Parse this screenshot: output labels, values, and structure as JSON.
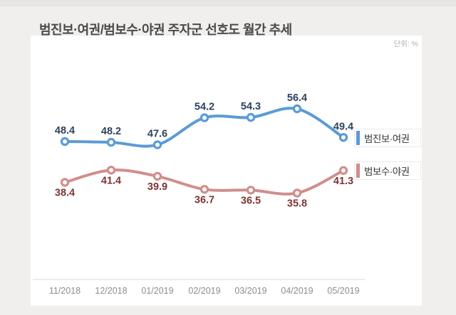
{
  "page": {
    "title": "범진보·여권/범보수·야권 주자군 선호도 월간 추세",
    "unit_label": "단위: %"
  },
  "chart_data": {
    "type": "line",
    "title": "범진보·여권/범보수·야권 주자군 선호도 월간 추세",
    "unit": "%",
    "categories": [
      "11/2018",
      "12/2018",
      "01/2019",
      "02/2019",
      "03/2019",
      "04/2019",
      "05/2019"
    ],
    "series": [
      {
        "name": "범진보·여권",
        "values": [
          48.4,
          48.2,
          47.6,
          54.2,
          54.3,
          56.4,
          49.4
        ],
        "color": "#5b9bd5",
        "label_color": "#2e4160",
        "value_label_position": "above"
      },
      {
        "name": "범보수·야권",
        "values": [
          38.4,
          41.4,
          39.9,
          36.7,
          36.5,
          35.8,
          41.3
        ],
        "color": "#d18e8c",
        "label_color": "#7d3535",
        "value_label_position": "below"
      }
    ],
    "legend_position": "right",
    "grid": false,
    "smooth": true,
    "ylim": [
      30,
      62
    ],
    "colors": {
      "axis_line": "#ececec",
      "tick_label": "#8c8c8c"
    }
  }
}
